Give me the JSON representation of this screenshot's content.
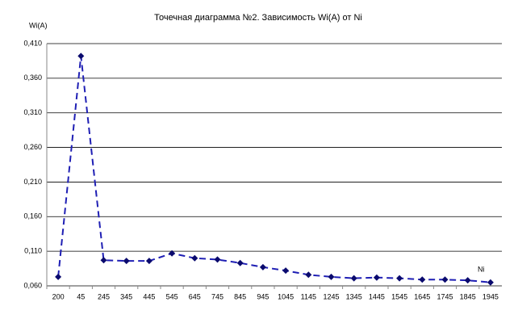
{
  "chart_data": {
    "type": "line",
    "title": "Точечная диаграмма №2. Зависимость Wi(A) от Ni",
    "y_label": "Wi(A)",
    "x_label": "Ni",
    "categories": [
      "200",
      "45",
      "245",
      "345",
      "445",
      "545",
      "645",
      "745",
      "845",
      "945",
      "1045",
      "1145",
      "1245",
      "1345",
      "1445",
      "1545",
      "1645",
      "1745",
      "1845",
      "1945"
    ],
    "series": [
      {
        "name": "Wi(A)",
        "color": "#1f1fb4",
        "values": [
          0.073,
          0.392,
          0.097,
          0.096,
          0.096,
          0.107,
          0.1,
          0.098,
          0.093,
          0.087,
          0.082,
          0.076,
          0.073,
          0.071,
          0.072,
          0.071,
          0.069,
          0.069,
          0.068,
          0.065
        ]
      }
    ],
    "ylim": [
      0.06,
      0.41
    ],
    "yticks": [
      {
        "value": 0.06,
        "label": "0,060"
      },
      {
        "value": 0.11,
        "label": "0,110"
      },
      {
        "value": 0.16,
        "label": "0,160"
      },
      {
        "value": 0.21,
        "label": "0,210"
      },
      {
        "value": 0.26,
        "label": "0,260"
      },
      {
        "value": 0.31,
        "label": "0,310"
      },
      {
        "value": 0.36,
        "label": "0,360"
      },
      {
        "value": 0.41,
        "label": "0,410"
      }
    ],
    "grid": true
  }
}
